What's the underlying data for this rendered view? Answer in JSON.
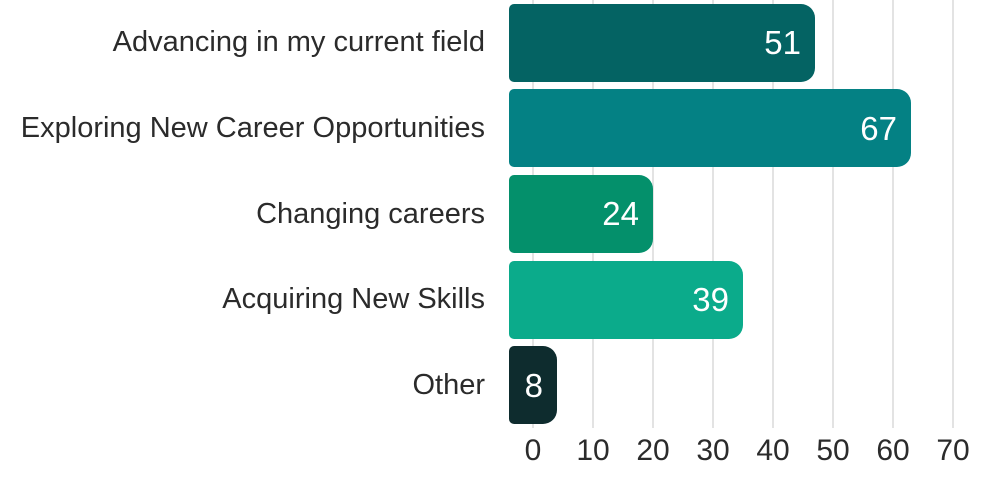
{
  "chart_data": {
    "type": "bar",
    "orientation": "horizontal",
    "categories": [
      "Advancing in my current field",
      "Exploring New Career Opportunities",
      "Changing careers",
      "Acquiring New Skills",
      "Other"
    ],
    "values": [
      51,
      67,
      24,
      39,
      8
    ],
    "bar_colors": [
      "#046363",
      "#048184",
      "#04906B",
      "#0BAB8B",
      "#0E2C2E"
    ],
    "value_label_color": "#ffffff",
    "xlim": [
      0,
      70
    ],
    "x_ticks": [
      0,
      10,
      20,
      30,
      40,
      50,
      60,
      70
    ],
    "grid": "vertical-only",
    "gridline_color": "#e3e3e3",
    "text_color": "#2b2b2b",
    "legend": "none",
    "background_color": "#ffffff"
  }
}
